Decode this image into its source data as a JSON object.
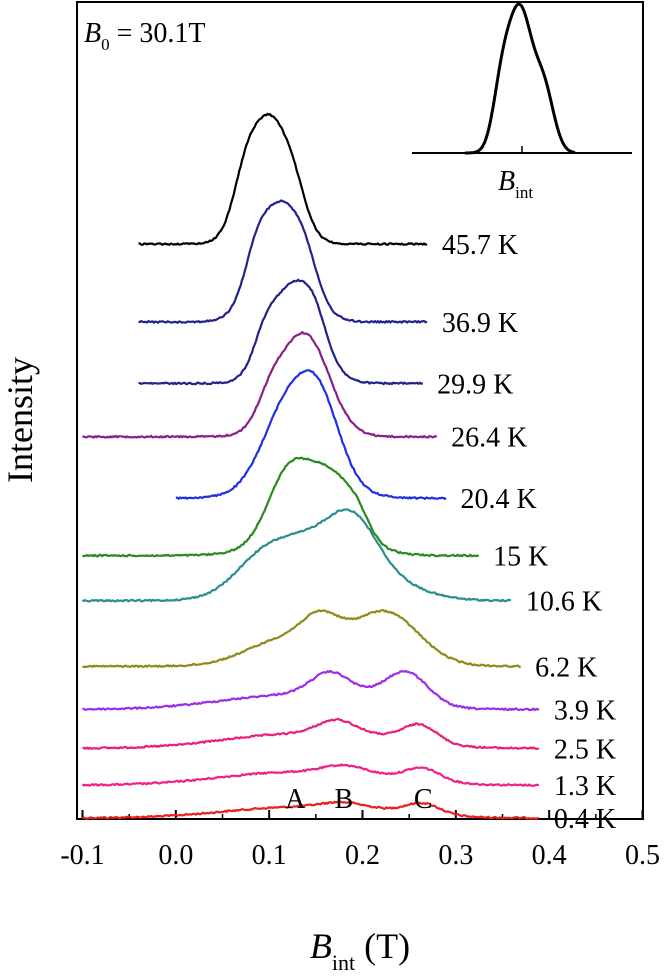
{
  "chart_data": {
    "type": "line",
    "title": "",
    "field_label": {
      "symbol": "B",
      "subscript": "0",
      "value": " = 30.1T"
    },
    "xlabel": {
      "symbol": "B",
      "subscript": "int",
      "unit": " (T)"
    },
    "ylabel": "Intensity",
    "xlim": [
      -0.1,
      0.5
    ],
    "x_ticks": [
      "-0.1",
      "0.0",
      "0.1",
      "0.2",
      "0.3",
      "0.4",
      "0.5"
    ],
    "y_scale": "stacked waterfall (offset per temperature), no numeric ticks",
    "grid": false,
    "peak_labels": [
      {
        "text": "A",
        "x": 0.128
      },
      {
        "text": "B",
        "x": 0.18
      },
      {
        "text": "C",
        "x": 0.265
      }
    ],
    "inset": {
      "type": "line",
      "xlabel": {
        "symbol": "B",
        "subscript": "int"
      },
      "description_shape": "single asymmetric peak"
    },
    "series": [
      {
        "name": "0.4 K",
        "color": "#e8201e",
        "x_range": [
          -0.1,
          0.39
        ],
        "baseline": 0.0,
        "components": [
          [
            0.125,
            0.075,
            0.25
          ],
          [
            0.178,
            0.022,
            0.12
          ],
          [
            0.265,
            0.018,
            0.24
          ],
          [
            0.225,
            0.05,
            0.1
          ]
        ]
      },
      {
        "name": "1.3 K",
        "color": "#f0208a",
        "x_range": [
          -0.1,
          0.39
        ],
        "baseline": 0.8,
        "components": [
          [
            0.12,
            0.075,
            0.3
          ],
          [
            0.18,
            0.022,
            0.18
          ],
          [
            0.265,
            0.018,
            0.28
          ],
          [
            0.225,
            0.05,
            0.12
          ]
        ]
      },
      {
        "name": "2.5 K",
        "color": "#e8207a",
        "x_range": [
          -0.1,
          0.39
        ],
        "baseline": 1.7,
        "components": [
          [
            0.12,
            0.072,
            0.32
          ],
          [
            0.172,
            0.02,
            0.32
          ],
          [
            0.262,
            0.018,
            0.4
          ],
          [
            0.22,
            0.05,
            0.18
          ]
        ]
      },
      {
        "name": "3.9 K",
        "color": "#9a2ee8",
        "x_range": [
          -0.1,
          0.39
        ],
        "baseline": 2.65,
        "components": [
          [
            0.11,
            0.07,
            0.3
          ],
          [
            0.165,
            0.02,
            0.48
          ],
          [
            0.248,
            0.022,
            0.7
          ],
          [
            0.2,
            0.05,
            0.25
          ]
        ]
      },
      {
        "name": "6.2 K",
        "color": "#8f8a1a",
        "x_range": [
          -0.1,
          0.37
        ],
        "baseline": 3.7,
        "components": [
          [
            0.115,
            0.04,
            0.55
          ],
          [
            0.155,
            0.02,
            0.65
          ],
          [
            0.225,
            0.035,
            1.15
          ],
          [
            0.18,
            0.06,
            0.2
          ]
        ]
      },
      {
        "name": "10.6 K",
        "color": "#2a8e8e",
        "x_range": [
          -0.1,
          0.36
        ],
        "baseline": 5.3,
        "components": [
          [
            0.13,
            0.045,
            1.35
          ],
          [
            0.19,
            0.025,
            1.0
          ],
          [
            0.205,
            0.045,
            0.6
          ],
          [
            0.085,
            0.025,
            0.3
          ]
        ]
      },
      {
        "name": "15 K",
        "color": "#2a8a1e",
        "x_range": [
          -0.1,
          0.325
        ],
        "baseline": 6.4,
        "components": [
          [
            0.12,
            0.022,
            1.5
          ],
          [
            0.167,
            0.025,
            1.45
          ],
          [
            0.145,
            0.045,
            0.5
          ],
          [
            0.195,
            0.012,
            0.3
          ]
        ]
      },
      {
        "name": "20.4 K",
        "color": "#1f2fe8",
        "x_range": [
          0.0,
          0.29
        ],
        "baseline": 7.8,
        "components": [
          [
            0.117,
            0.025,
            1.55
          ],
          [
            0.154,
            0.022,
            1.75
          ],
          [
            0.135,
            0.04,
            0.6
          ]
        ]
      },
      {
        "name": "26.4 K",
        "color": "#8a1e8a",
        "x_range": [
          -0.1,
          0.28
        ],
        "baseline": 9.3,
        "components": [
          [
            0.135,
            0.027,
            2.4
          ],
          [
            0.1,
            0.013,
            0.4
          ],
          [
            0.155,
            0.015,
            0.15
          ]
        ]
      },
      {
        "name": "29.9 K",
        "color": "#22228c",
        "x_range": [
          -0.04,
          0.265
        ],
        "baseline": 10.6,
        "components": [
          [
            0.127,
            0.025,
            2.35
          ],
          [
            0.095,
            0.012,
            0.55
          ],
          [
            0.15,
            0.012,
            0.45
          ]
        ]
      },
      {
        "name": "36.9 K",
        "color": "#22228c",
        "x_range": [
          -0.04,
          0.27
        ],
        "baseline": 12.1,
        "components": [
          [
            0.113,
            0.025,
            2.8
          ],
          [
            0.085,
            0.012,
            0.6
          ],
          [
            0.14,
            0.012,
            0.45
          ]
        ]
      },
      {
        "name": "45.7 K",
        "color": "#000000",
        "x_range": [
          -0.04,
          0.27
        ],
        "baseline": 14.0,
        "components": [
          [
            0.1,
            0.023,
            3.0
          ],
          [
            0.073,
            0.012,
            0.65
          ],
          [
            0.128,
            0.012,
            0.45
          ]
        ]
      }
    ]
  }
}
